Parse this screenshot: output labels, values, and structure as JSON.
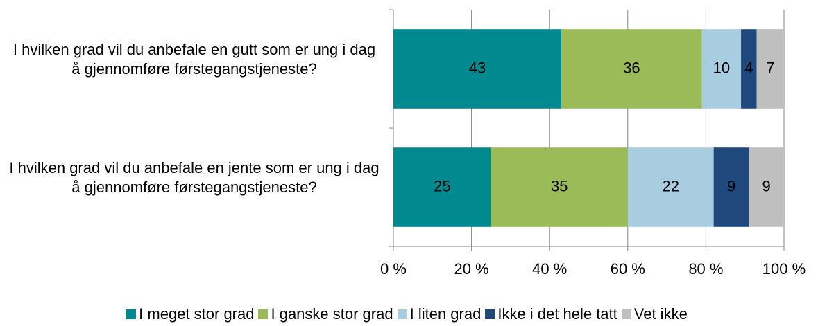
{
  "chart_data": {
    "type": "stacked_barh",
    "categories": [
      "I hvilken grad vil du anbefale en gutt som er ung i dag å gjennomføre førstegangstjeneste?",
      "I hvilken grad vil du anbefale en jente som er ung i dag å gjennomføre førstegangstjeneste?"
    ],
    "series": [
      {
        "name": "I meget stor grad",
        "color": "#00898e",
        "values": [
          43,
          25
        ]
      },
      {
        "name": "I ganske stor grad",
        "color": "#9bbb59",
        "values": [
          36,
          35
        ]
      },
      {
        "name": "I liten grad",
        "color": "#a9cde0",
        "values": [
          10,
          22
        ]
      },
      {
        "name": "Ikke i det hele tatt",
        "color": "#1f497d",
        "values": [
          4,
          9
        ]
      },
      {
        "name": "Vet ikke",
        "color": "#bfbfbf",
        "values": [
          7,
          9
        ]
      }
    ],
    "xlim": [
      0,
      100
    ],
    "xticks": [
      {
        "value": 0,
        "label": "0 %"
      },
      {
        "value": 20,
        "label": "20 %"
      },
      {
        "value": 40,
        "label": "40 %"
      },
      {
        "value": 60,
        "label": "60 %"
      },
      {
        "value": 80,
        "label": "80 %"
      },
      {
        "value": 100,
        "label": "100 %"
      }
    ],
    "grid": true,
    "legend": "bottom"
  }
}
